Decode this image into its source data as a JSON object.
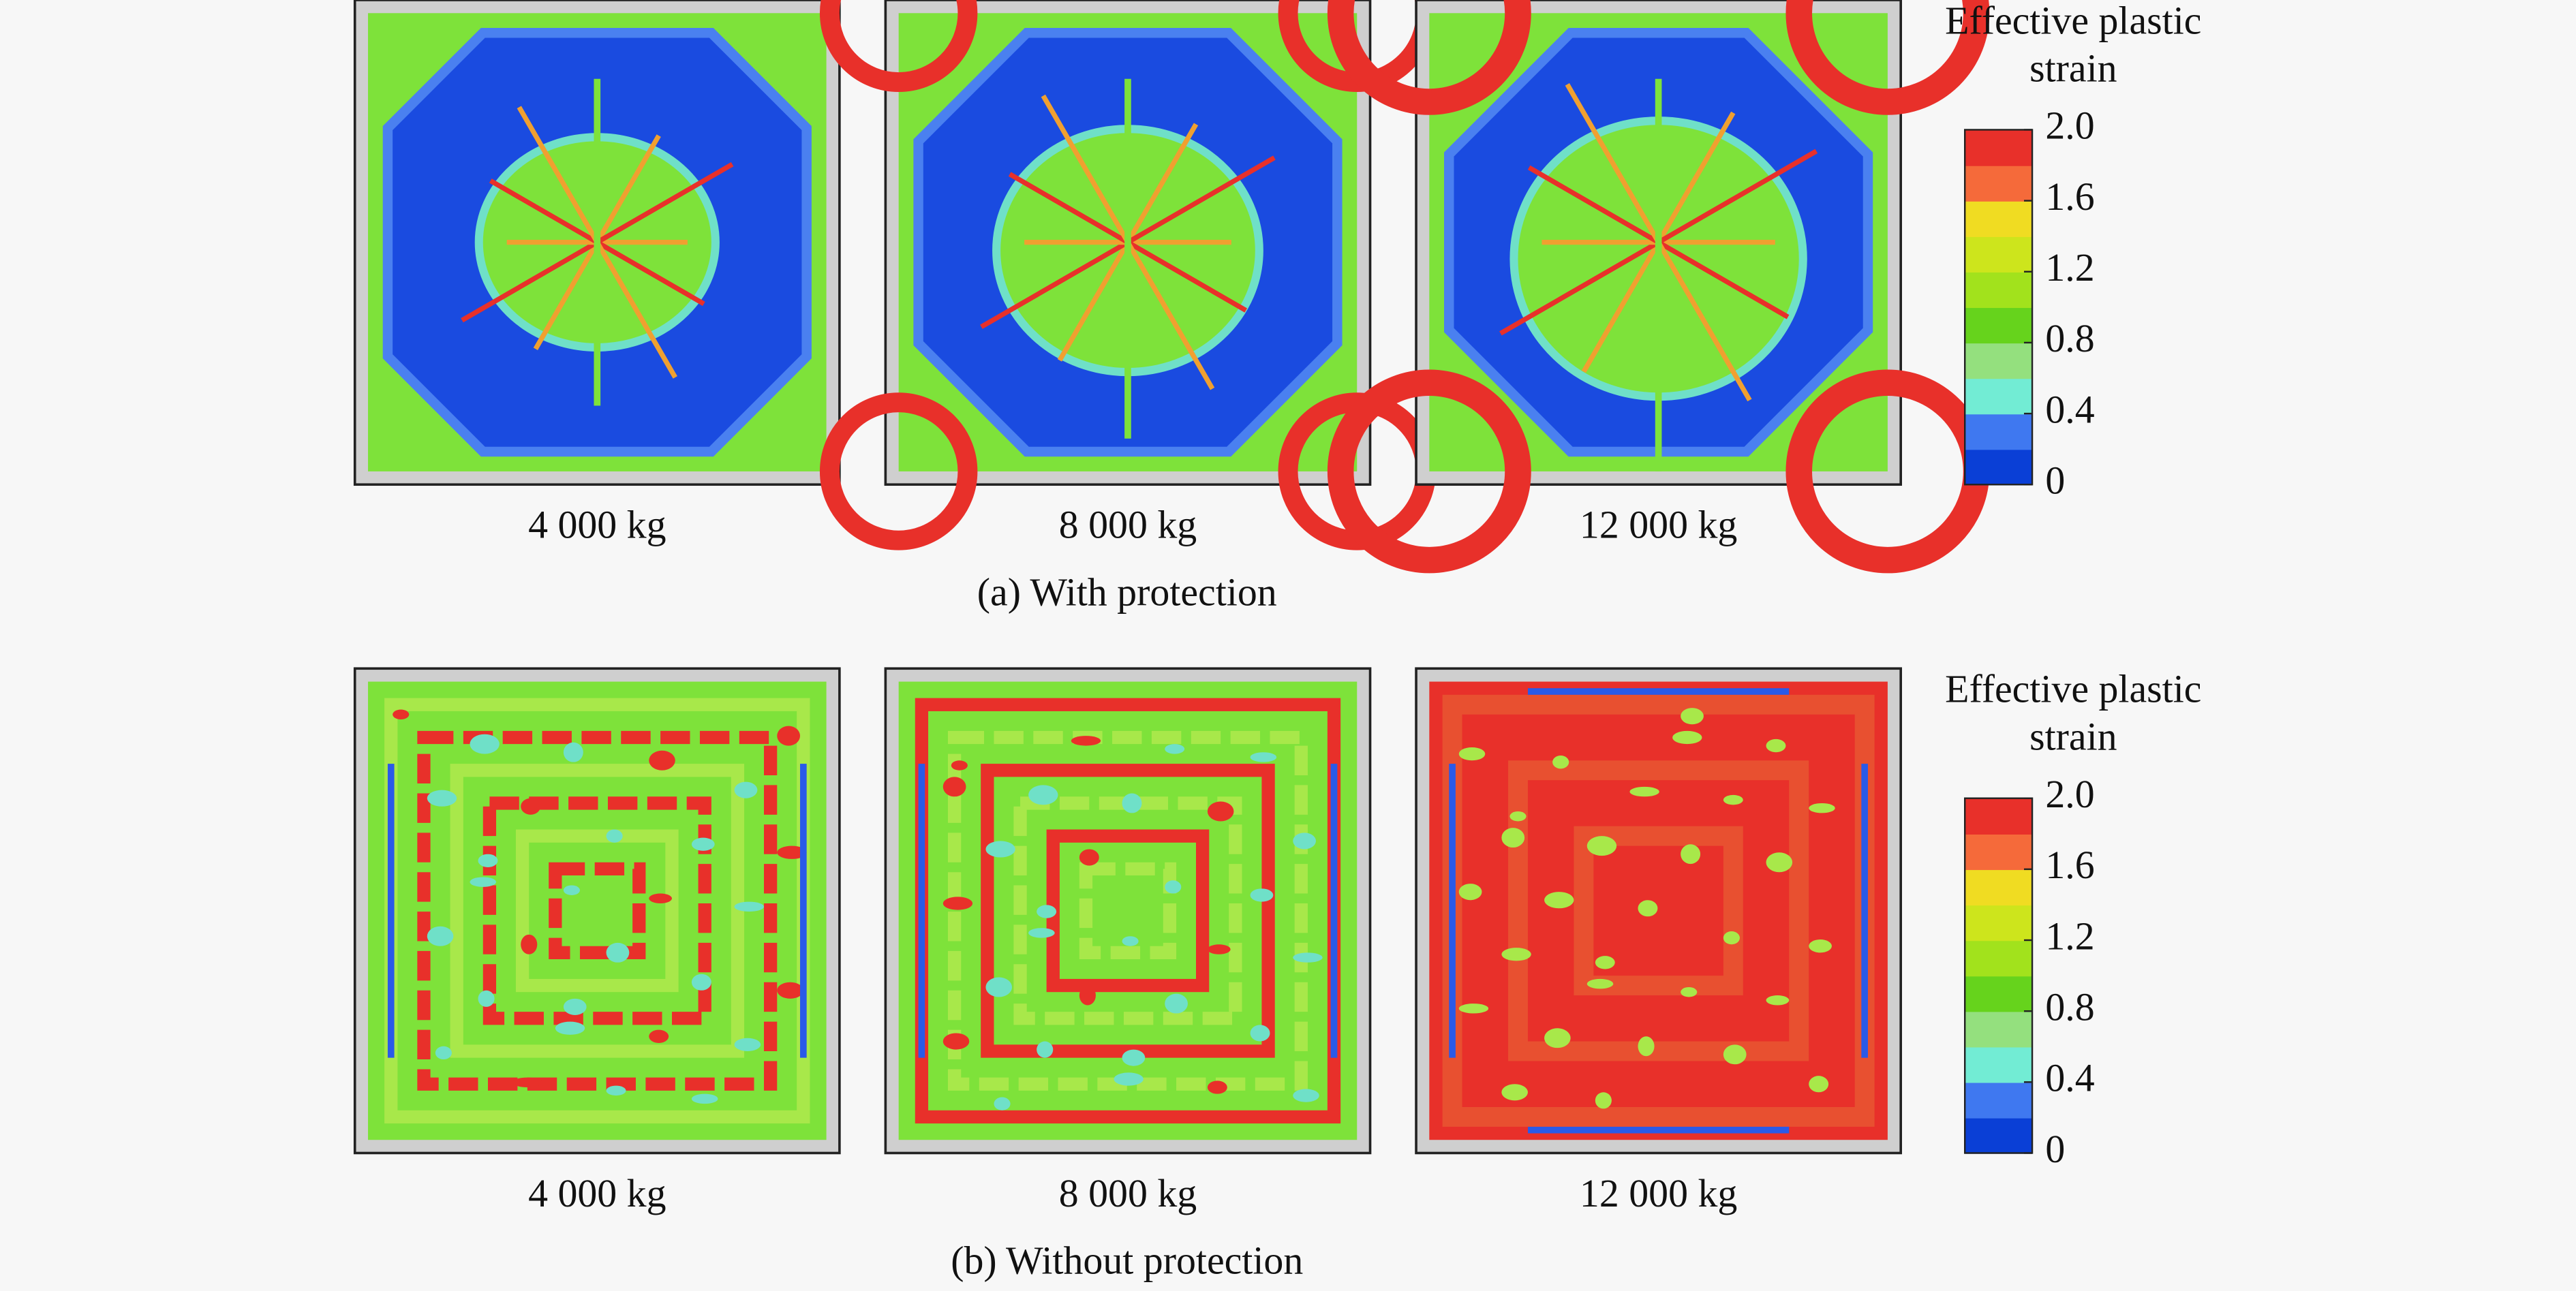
{
  "figure": {
    "groups": [
      {
        "caption": "(a) With protection",
        "panels": [
          "4 000 kg",
          "8 000 kg",
          "12 000 kg"
        ],
        "colorbar": {
          "title": [
            "Effective plastic",
            "strain"
          ],
          "lim": [
            0,
            2
          ],
          "ticks": [
            0,
            0.4,
            0.8,
            1.2,
            1.6,
            {
              "value": 2,
              "label": "2.0"
            }
          ],
          "colors": [
            "#0a3fd6",
            "#3f78f0",
            "#72ecd4",
            "#94e07e",
            "#66d31c",
            "#a2e21c",
            "#cde51c",
            "#f0dc22",
            "#f56a3a",
            "#e8302a"
          ]
        }
      },
      {
        "caption": "(b) Without protection",
        "panels": [
          "4 000 kg",
          "8 000 kg",
          "12 000 kg"
        ],
        "colorbar": {
          "title": [
            "Effective plastic",
            "strain"
          ],
          "lim": [
            0,
            2
          ],
          "ticks": [
            0,
            0.4,
            0.8,
            1.2,
            1.6,
            {
              "value": 2,
              "label": "2.0"
            }
          ],
          "colors": [
            "#0a3fd6",
            "#3f78f0",
            "#72ecd4",
            "#94e07e",
            "#66d31c",
            "#a2e21c",
            "#cde51c",
            "#f0dc22",
            "#f56a3a",
            "#e8302a"
          ]
        }
      }
    ]
  }
}
